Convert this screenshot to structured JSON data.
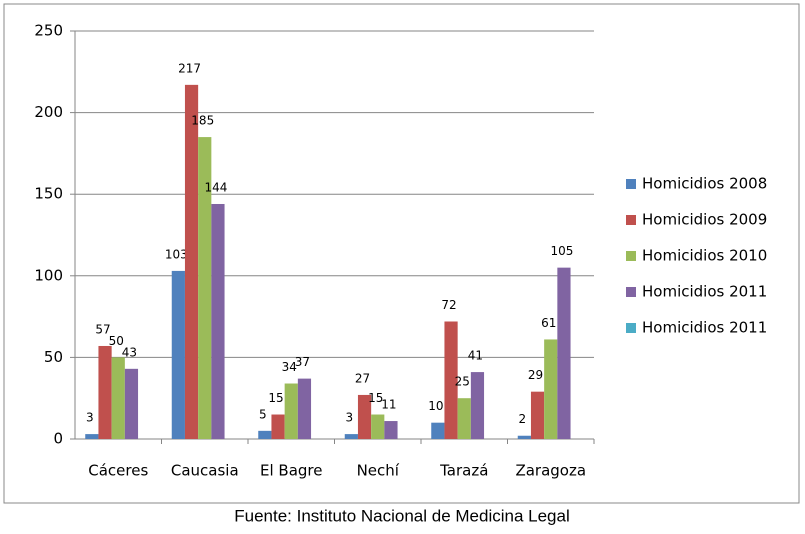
{
  "chart_data": {
    "type": "bar",
    "source": "Fuente: Instituto Nacional de Medicina Legal",
    "categories": [
      "Cáceres",
      "Caucasia",
      "El Bagre",
      "Nechí",
      "Tarazá",
      "Zaragoza"
    ],
    "series": [
      {
        "name": "Homicidios 2008",
        "color": "#4f81bd",
        "values": [
          3,
          103,
          5,
          3,
          10,
          2
        ]
      },
      {
        "name": "Homicidios 2009",
        "color": "#c0504d",
        "values": [
          57,
          217,
          15,
          27,
          72,
          29
        ]
      },
      {
        "name": "Homicidios 2010",
        "color": "#9bbb59",
        "values": [
          50,
          185,
          34,
          15,
          25,
          61
        ]
      },
      {
        "name": "Homicidios 2011",
        "color": "#8064a2",
        "values": [
          43,
          144,
          37,
          11,
          41,
          105
        ]
      },
      {
        "name": "Homicidios 2011",
        "color": "#4bacc6",
        "values": [
          null,
          null,
          null,
          null,
          null,
          null
        ]
      }
    ],
    "ylim": [
      0,
      250
    ],
    "yticks": [
      0,
      50,
      100,
      150,
      200,
      250
    ],
    "grid": true,
    "legend": "right"
  }
}
